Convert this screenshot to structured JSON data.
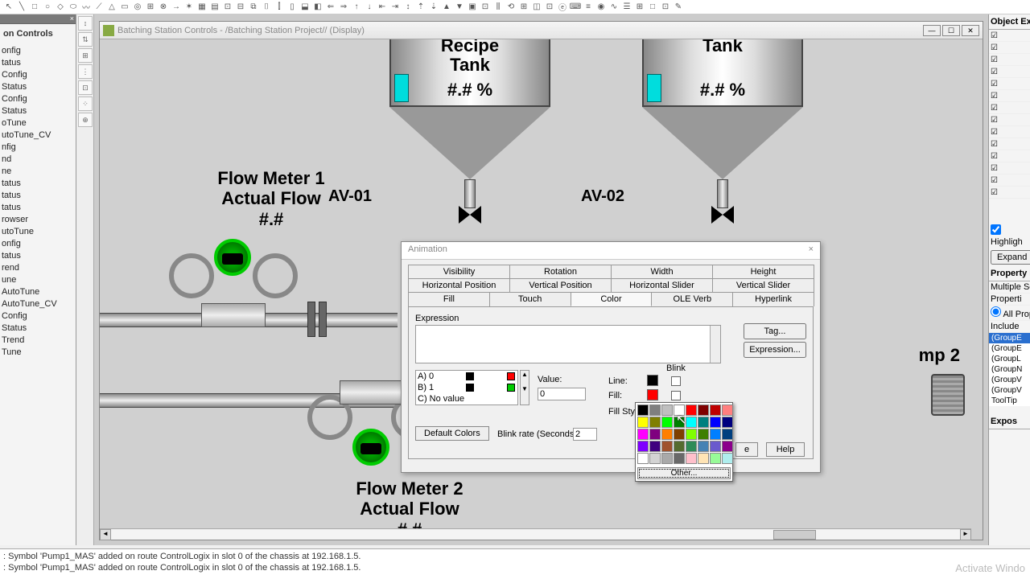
{
  "toolbar_icons": [
    "↖",
    "╲",
    "□",
    "○",
    "◇",
    "⬭",
    "〰",
    "⟋",
    "△",
    "▭",
    "◎",
    "⊞",
    "⊗",
    "→",
    "✶",
    "▦",
    "▤",
    "⊡",
    "⊟",
    "⧉",
    "⌷",
    "⫿",
    "▯",
    "⬓",
    "◧",
    "⇐",
    "⇒",
    "↑",
    "↓",
    "⇤",
    "⇥",
    "↕",
    "⇡",
    "⇣",
    "▲",
    "▼",
    "▣",
    "⊡",
    "⫼",
    "⟲",
    "⊞",
    "◫",
    "⊡",
    "ⓔ",
    "⌨",
    "≡",
    "◉",
    "∿",
    "☰",
    "⊞",
    "□",
    "⊡",
    "✎"
  ],
  "left_panel": {
    "title": "on Controls",
    "items": [
      "",
      "onfig",
      "tatus",
      "",
      "Config",
      "Status",
      "",
      "Config",
      "Status",
      "",
      "oTune",
      "utoTune_CV",
      "nfig",
      "nd",
      "ne",
      "",
      "tatus",
      "",
      "tatus",
      "",
      "tatus",
      "rowser",
      "",
      "utoTune",
      "onfig",
      "tatus",
      "rend",
      "une",
      "",
      "AutoTune",
      "AutoTune_CV",
      "Config",
      "Status",
      "Trend",
      "Tune",
      ""
    ]
  },
  "design": {
    "title": "Batching Station Controls - /Batching Station Project// (Display)",
    "tank1": {
      "name": "Master Recipe Tank",
      "pct": "#.# %",
      "valve": "AV-01"
    },
    "tank2": {
      "name": "Corn Syrup Tank",
      "pct": "#.# %",
      "valve": "AV-02"
    },
    "flow1": {
      "label": "Flow Meter 1\nActual Flow\n#.#"
    },
    "flow2": {
      "label": "Flow Meter 2\nActual Flow\n#.#"
    },
    "pump2": "mp 2"
  },
  "dialog": {
    "title": "Animation",
    "tabs_r1": [
      "Visibility",
      "Rotation",
      "Width",
      "Height"
    ],
    "tabs_r2": [
      "Horizontal Position",
      "Vertical Position",
      "Horizontal Slider",
      "Vertical Slider"
    ],
    "tabs_r3": [
      "Fill",
      "Touch",
      "Color",
      "OLE Verb",
      "Hyperlink"
    ],
    "expression_label": "Expression",
    "tag_btn": "Tag...",
    "expr_btn": "Expression...",
    "colorlist": [
      {
        "k": "A) 0",
        "c1": "#000",
        "c2": "#f00"
      },
      {
        "k": "B) 1",
        "c1": "#000",
        "c2": "#0c0"
      },
      {
        "k": "C) No value",
        "c1": "",
        "c2": ""
      }
    ],
    "value_label": "Value:",
    "value": "0",
    "line_label": "Line:",
    "fill_label": "Fill:",
    "fillstyle_label": "Fill Style:",
    "blink_label": "Blink",
    "default_btn": "Default Colors",
    "blinkrate_label": "Blink rate (Seconds):",
    "blinkrate": "2",
    "apply": "App",
    "close": "e",
    "help": "Help",
    "other": "Other..."
  },
  "color_palette": [
    "#000000",
    "#7f7f7f",
    "#bfbfbf",
    "#ffffff",
    "#ff0000",
    "#7f0000",
    "#bf0000",
    "#ff7f7f",
    "#ffff00",
    "#7f7f00",
    "#00ff00",
    "#007f00",
    "#00ffff",
    "#007f7f",
    "#0000ff",
    "#00007f",
    "#ff00ff",
    "#7f007f",
    "#ff7f00",
    "#7f3f00",
    "#7fff00",
    "#3f7f00",
    "#007fff",
    "#003f7f",
    "#7f00ff",
    "#3f007f",
    "#a0522d",
    "#556b2f",
    "#2e8b57",
    "#4682b4",
    "#6a5acd",
    "#8b008b",
    "#ffffff",
    "#d3d3d3",
    "#a9a9a9",
    "#696969",
    "#ffc0cb",
    "#ffe4b5",
    "#98fb98",
    "#afeeee"
  ],
  "right": {
    "hdr1": "Object Expl",
    "hdr2": "Property Pa",
    "multi": "Multiple Se",
    "props_lbl": "Properti",
    "allprops": " All Prop",
    "include": "Include",
    "items": [
      "(GroupE",
      "(GroupE",
      "(GroupL",
      "(GroupN",
      "(GroupV",
      "(GroupV",
      "ToolTip"
    ],
    "expose": "Expos",
    "highlight": "Highligh",
    "expand": "Expand"
  },
  "status": {
    "l1": ": Symbol 'Pump1_MAS' added on route ControlLogix in slot 0 of the chassis at 192.168.1.5.",
    "l2": ": Symbol 'Pump1_MAS' added on route ControlLogix in slot 0 of the chassis at 192.168.1.5."
  },
  "activate": "Activate Windo"
}
